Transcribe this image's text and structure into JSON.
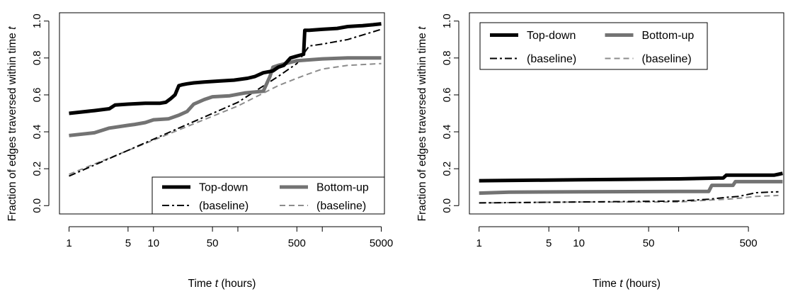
{
  "colors": {
    "top_down": "#000000",
    "bottom_up": "#737373",
    "top_down_baseline": "#000000",
    "bottom_up_baseline": "#8c8c8c"
  },
  "chart_data": [
    {
      "type": "line",
      "x_scale": "log",
      "xlim": [
        1,
        5000
      ],
      "ylim": [
        0,
        1
      ],
      "x_ticks": [
        1,
        5,
        10,
        50,
        500,
        5000
      ],
      "x_tick_labels": [
        "1",
        "5",
        "10",
        "50",
        "500",
        "5000"
      ],
      "y_ticks": [
        0.0,
        0.2,
        0.4,
        0.6,
        0.8,
        1.0
      ],
      "y_tick_labels": [
        "0.0",
        "0.2",
        "0.4",
        "0.6",
        "0.8",
        "1.0"
      ],
      "xlabel_parts": [
        "Time ",
        "t",
        " (hours)"
      ],
      "ylabel_parts": [
        "Fraction of edges traversed within time ",
        "t"
      ],
      "legend_position": "bottom-right",
      "legend": [
        "Top-down",
        "Bottom-up",
        "(baseline)",
        "(baseline)"
      ],
      "series": [
        {
          "name": "Top-down",
          "style": "solid-thick",
          "color": "#000000",
          "x": [
            1,
            2,
            3,
            3.5,
            5,
            8,
            12,
            14,
            16,
            18,
            20,
            22,
            25,
            30,
            40,
            60,
            90,
            130,
            160,
            200,
            260,
            300,
            350,
            420,
            500,
            600,
            620,
            700,
            1000,
            1500,
            2000,
            3000,
            4000,
            5000
          ],
          "y": [
            0.5,
            0.515,
            0.525,
            0.545,
            0.55,
            0.555,
            0.555,
            0.56,
            0.58,
            0.6,
            0.65,
            0.655,
            0.66,
            0.665,
            0.67,
            0.675,
            0.68,
            0.69,
            0.7,
            0.72,
            0.73,
            0.75,
            0.76,
            0.8,
            0.81,
            0.82,
            0.95,
            0.95,
            0.955,
            0.96,
            0.97,
            0.975,
            0.98,
            0.985
          ]
        },
        {
          "name": "Bottom-up",
          "style": "solid-thick",
          "color": "#737373",
          "x": [
            1,
            2,
            3,
            5,
            6,
            8,
            10,
            15,
            20,
            25,
            30,
            40,
            50,
            80,
            120,
            200,
            240,
            260,
            300,
            500,
            1000,
            2000,
            5000
          ],
          "y": [
            0.38,
            0.395,
            0.42,
            0.435,
            0.44,
            0.45,
            0.465,
            0.47,
            0.49,
            0.51,
            0.55,
            0.575,
            0.59,
            0.595,
            0.61,
            0.62,
            0.7,
            0.75,
            0.76,
            0.785,
            0.795,
            0.8,
            0.8
          ]
        },
        {
          "name": "Top-down (baseline)",
          "style": "dashdot",
          "color": "#000000",
          "x": [
            1,
            10,
            100,
            300,
            500,
            700,
            1000,
            2000,
            5000
          ],
          "y": [
            0.16,
            0.36,
            0.56,
            0.7,
            0.77,
            0.865,
            0.875,
            0.9,
            0.955
          ]
        },
        {
          "name": "Bottom-up (baseline)",
          "style": "dashed",
          "color": "#8c8c8c",
          "x": [
            1,
            10,
            100,
            300,
            500,
            700,
            1000,
            2000,
            5000
          ],
          "y": [
            0.17,
            0.355,
            0.54,
            0.65,
            0.69,
            0.715,
            0.74,
            0.76,
            0.77
          ]
        }
      ]
    },
    {
      "type": "line",
      "x_scale": "log",
      "xlim": [
        1,
        1100
      ],
      "ylim": [
        0,
        1
      ],
      "x_ticks": [
        1,
        5,
        10,
        50,
        500
      ],
      "x_tick_labels": [
        "1",
        "5",
        "10",
        "50",
        "500"
      ],
      "y_ticks": [
        0.0,
        0.2,
        0.4,
        0.6,
        0.8,
        1.0
      ],
      "y_tick_labels": [
        "0.0",
        "0.2",
        "0.4",
        "0.6",
        "0.8",
        "1.0"
      ],
      "xlabel_parts": [
        "Time ",
        "t",
        " (hours)"
      ],
      "ylabel_parts": [
        "Fraction of edges traversed within time ",
        "t"
      ],
      "legend_position": "top-left",
      "legend": [
        "Top-down",
        "Bottom-up",
        "(baseline)",
        "(baseline)"
      ],
      "series": [
        {
          "name": "Top-down",
          "style": "solid-thick",
          "color": "#000000",
          "x": [
            1,
            10,
            100,
            280,
            300,
            900,
            1000,
            1100
          ],
          "y": [
            0.135,
            0.14,
            0.145,
            0.15,
            0.165,
            0.165,
            0.17,
            0.175
          ]
        },
        {
          "name": "Bottom-up",
          "style": "solid-thick",
          "color": "#737373",
          "x": [
            1,
            2,
            10,
            100,
            200,
            215,
            350,
            370,
            1100
          ],
          "y": [
            0.068,
            0.073,
            0.075,
            0.077,
            0.077,
            0.11,
            0.11,
            0.13,
            0.13
          ]
        },
        {
          "name": "Top-down (baseline)",
          "style": "dashdot",
          "color": "#000000",
          "x": [
            1,
            10,
            100,
            200,
            300,
            400,
            600,
            1000
          ],
          "y": [
            0.015,
            0.02,
            0.025,
            0.035,
            0.045,
            0.05,
            0.07,
            0.075
          ]
        },
        {
          "name": "Bottom-up (baseline)",
          "style": "dashed",
          "color": "#8c8c8c",
          "x": [
            1,
            10,
            100,
            200,
            300,
            400,
            600,
            1000
          ],
          "y": [
            0.015,
            0.02,
            0.02,
            0.03,
            0.035,
            0.04,
            0.05,
            0.055
          ]
        }
      ]
    }
  ]
}
